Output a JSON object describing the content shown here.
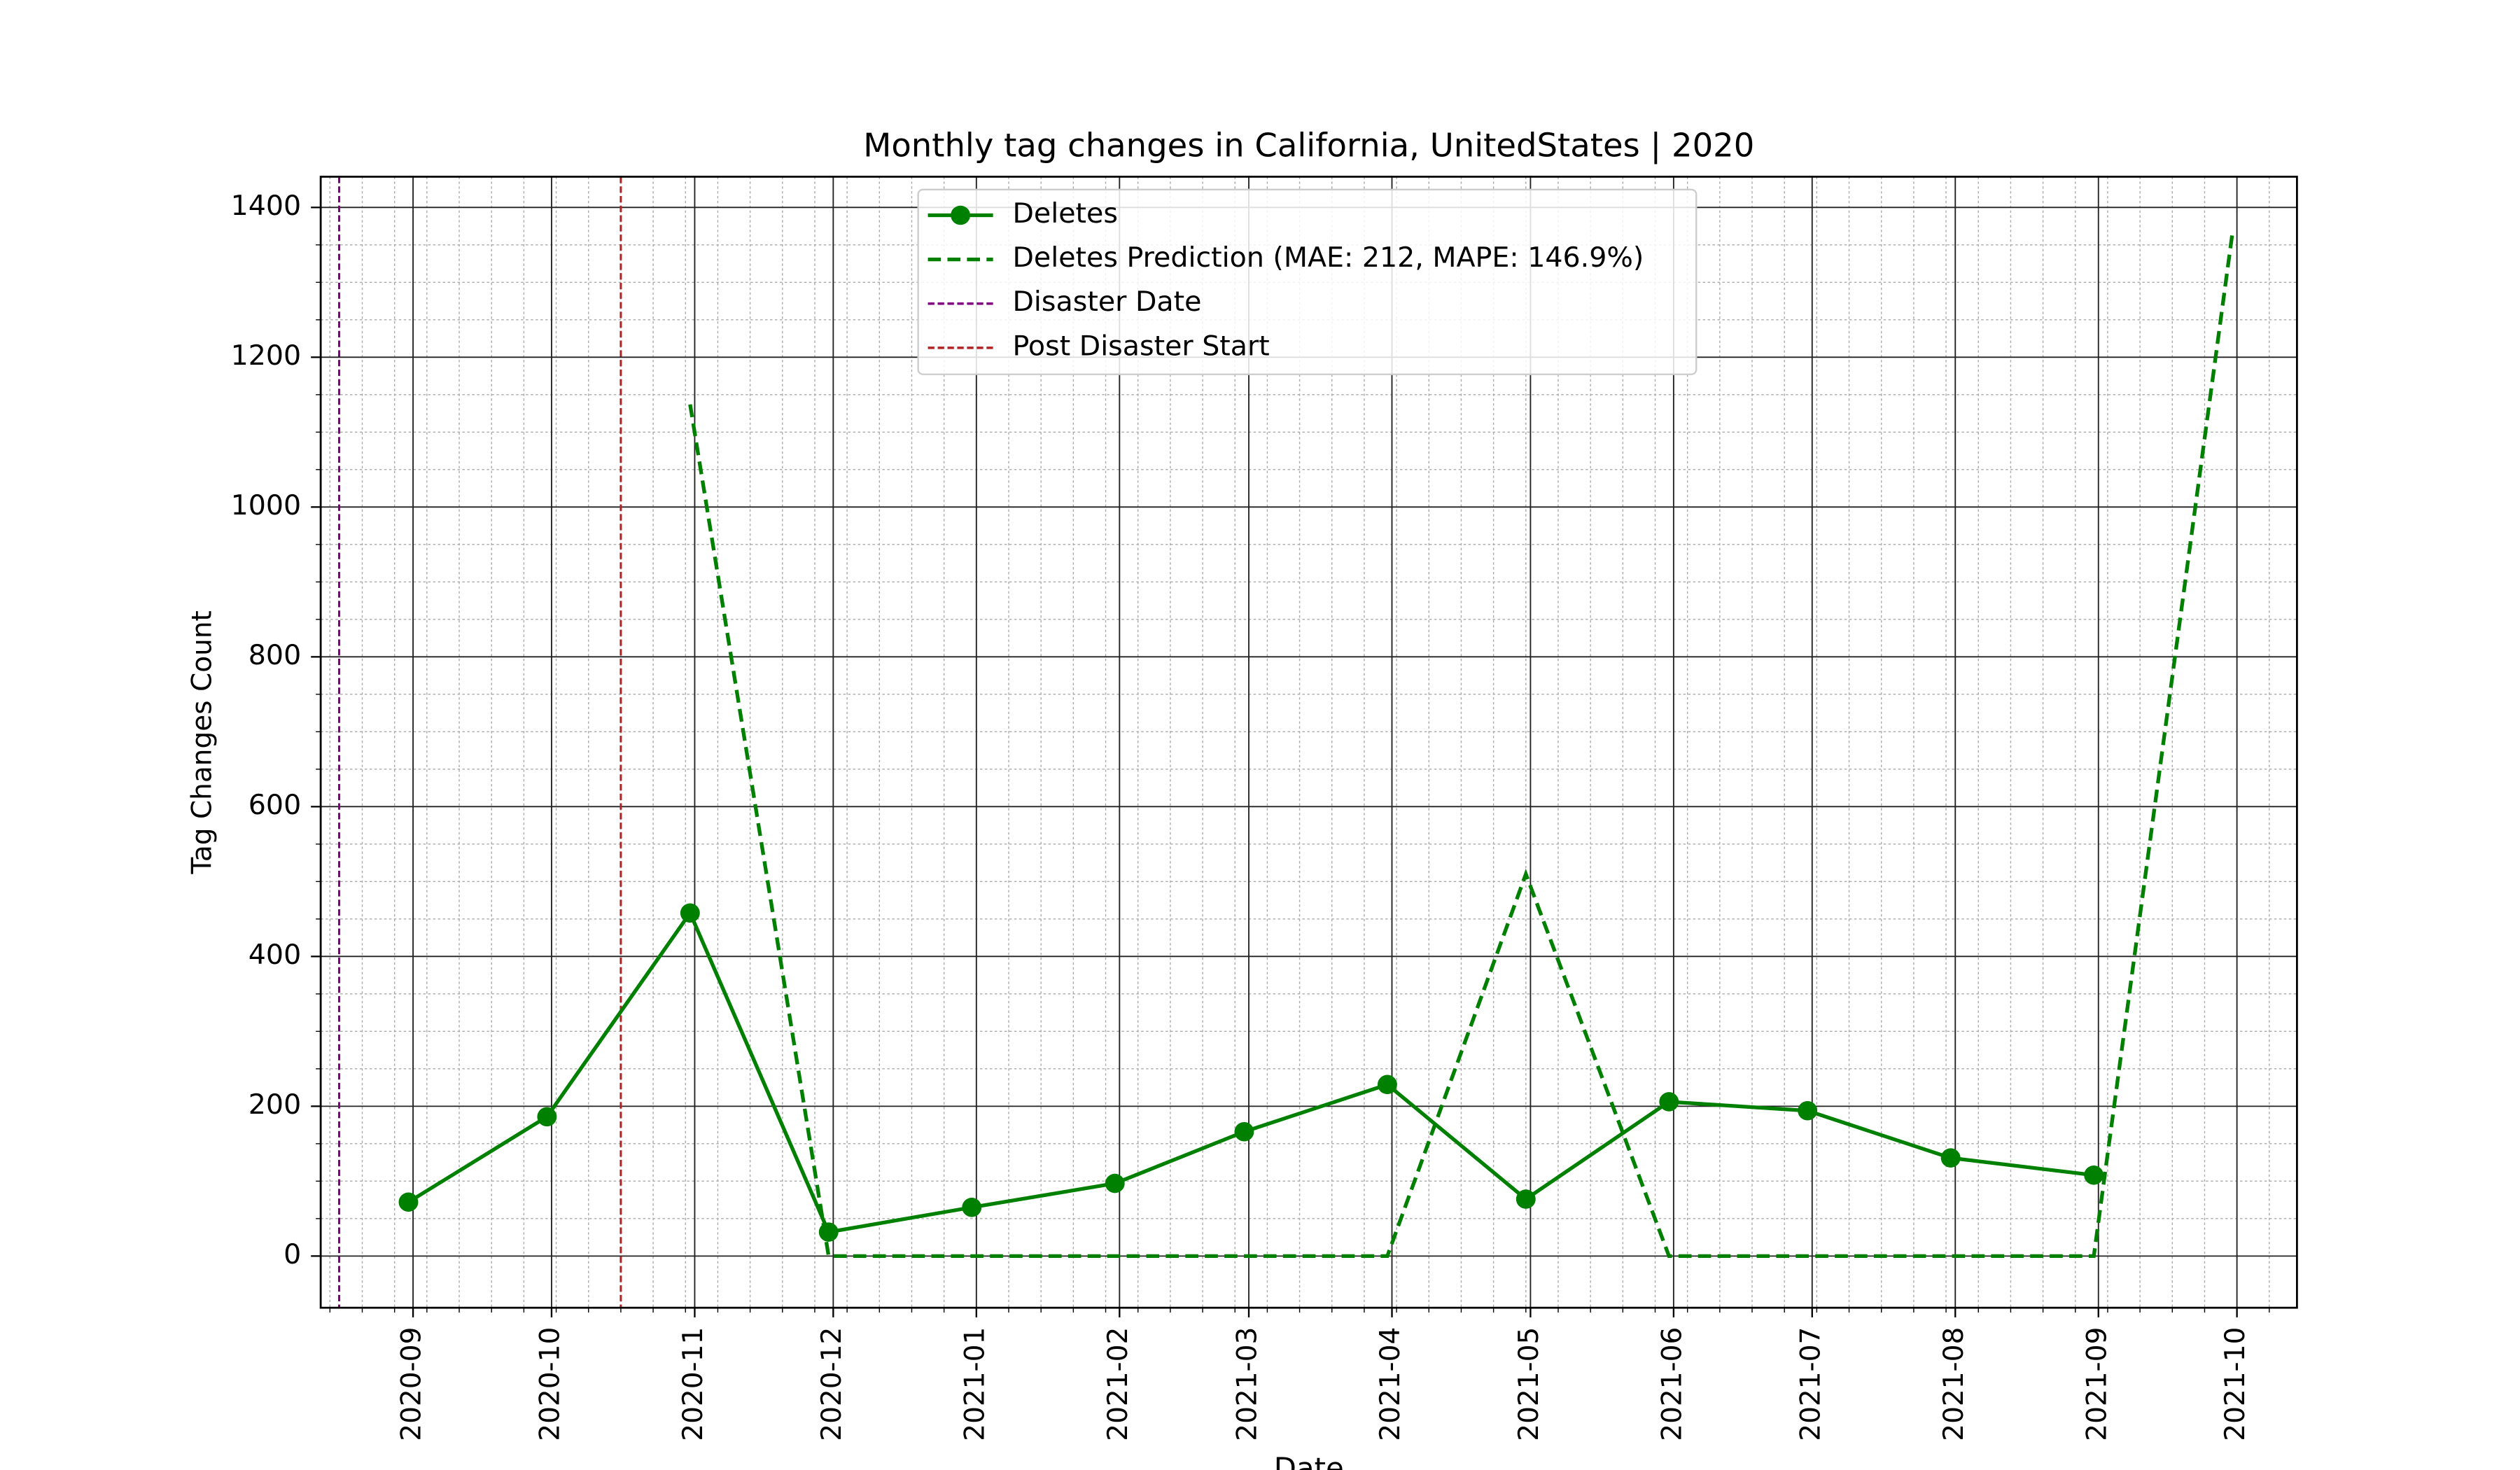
{
  "chart_data": {
    "type": "line",
    "title": "Monthly tag changes in California, UnitedStates | 2020",
    "xlabel": "Date",
    "ylabel": "Tag Changes Count",
    "x": [
      "2020-08",
      "2020-09",
      "2020-10",
      "2020-11",
      "2020-12",
      "2021-01",
      "2021-02",
      "2021-03",
      "2021-04",
      "2021-05",
      "2021-06",
      "2021-07",
      "2021-08",
      "2021-09"
    ],
    "series": [
      {
        "name": "Deletes",
        "color": "#008000",
        "style": "solid",
        "marker": "circle",
        "values": [
          72,
          186,
          458,
          32,
          65,
          97,
          166,
          229,
          76,
          206,
          194,
          131,
          108,
          null
        ]
      },
      {
        "name": "Deletes Prediction (MAE: 212, MAPE: 146.9%)",
        "color": "#008000",
        "style": "dashed",
        "values": [
          null,
          null,
          1137,
          0,
          0,
          0,
          0,
          0,
          510,
          0,
          0,
          0,
          0,
          1365
        ]
      }
    ],
    "vlines": [
      {
        "name": "Disaster Date",
        "x": "2020-08",
        "color": "#800080"
      },
      {
        "name": "Post Disaster Start",
        "x": "2020-10",
        "color": "#b22222"
      }
    ],
    "xlim": [
      "2020-08",
      "2021-10"
    ],
    "xticks": [
      "2020-09",
      "2020-10",
      "2020-11",
      "2020-12",
      "2021-01",
      "2021-02",
      "2021-03",
      "2021-04",
      "2021-05",
      "2021-06",
      "2021-07",
      "2021-08",
      "2021-09",
      "2021-10"
    ],
    "ylim": [
      -69,
      1441
    ],
    "yticks": [
      0,
      200,
      400,
      600,
      800,
      1000,
      1200,
      1400
    ],
    "grid": true,
    "legend": "upper center"
  }
}
